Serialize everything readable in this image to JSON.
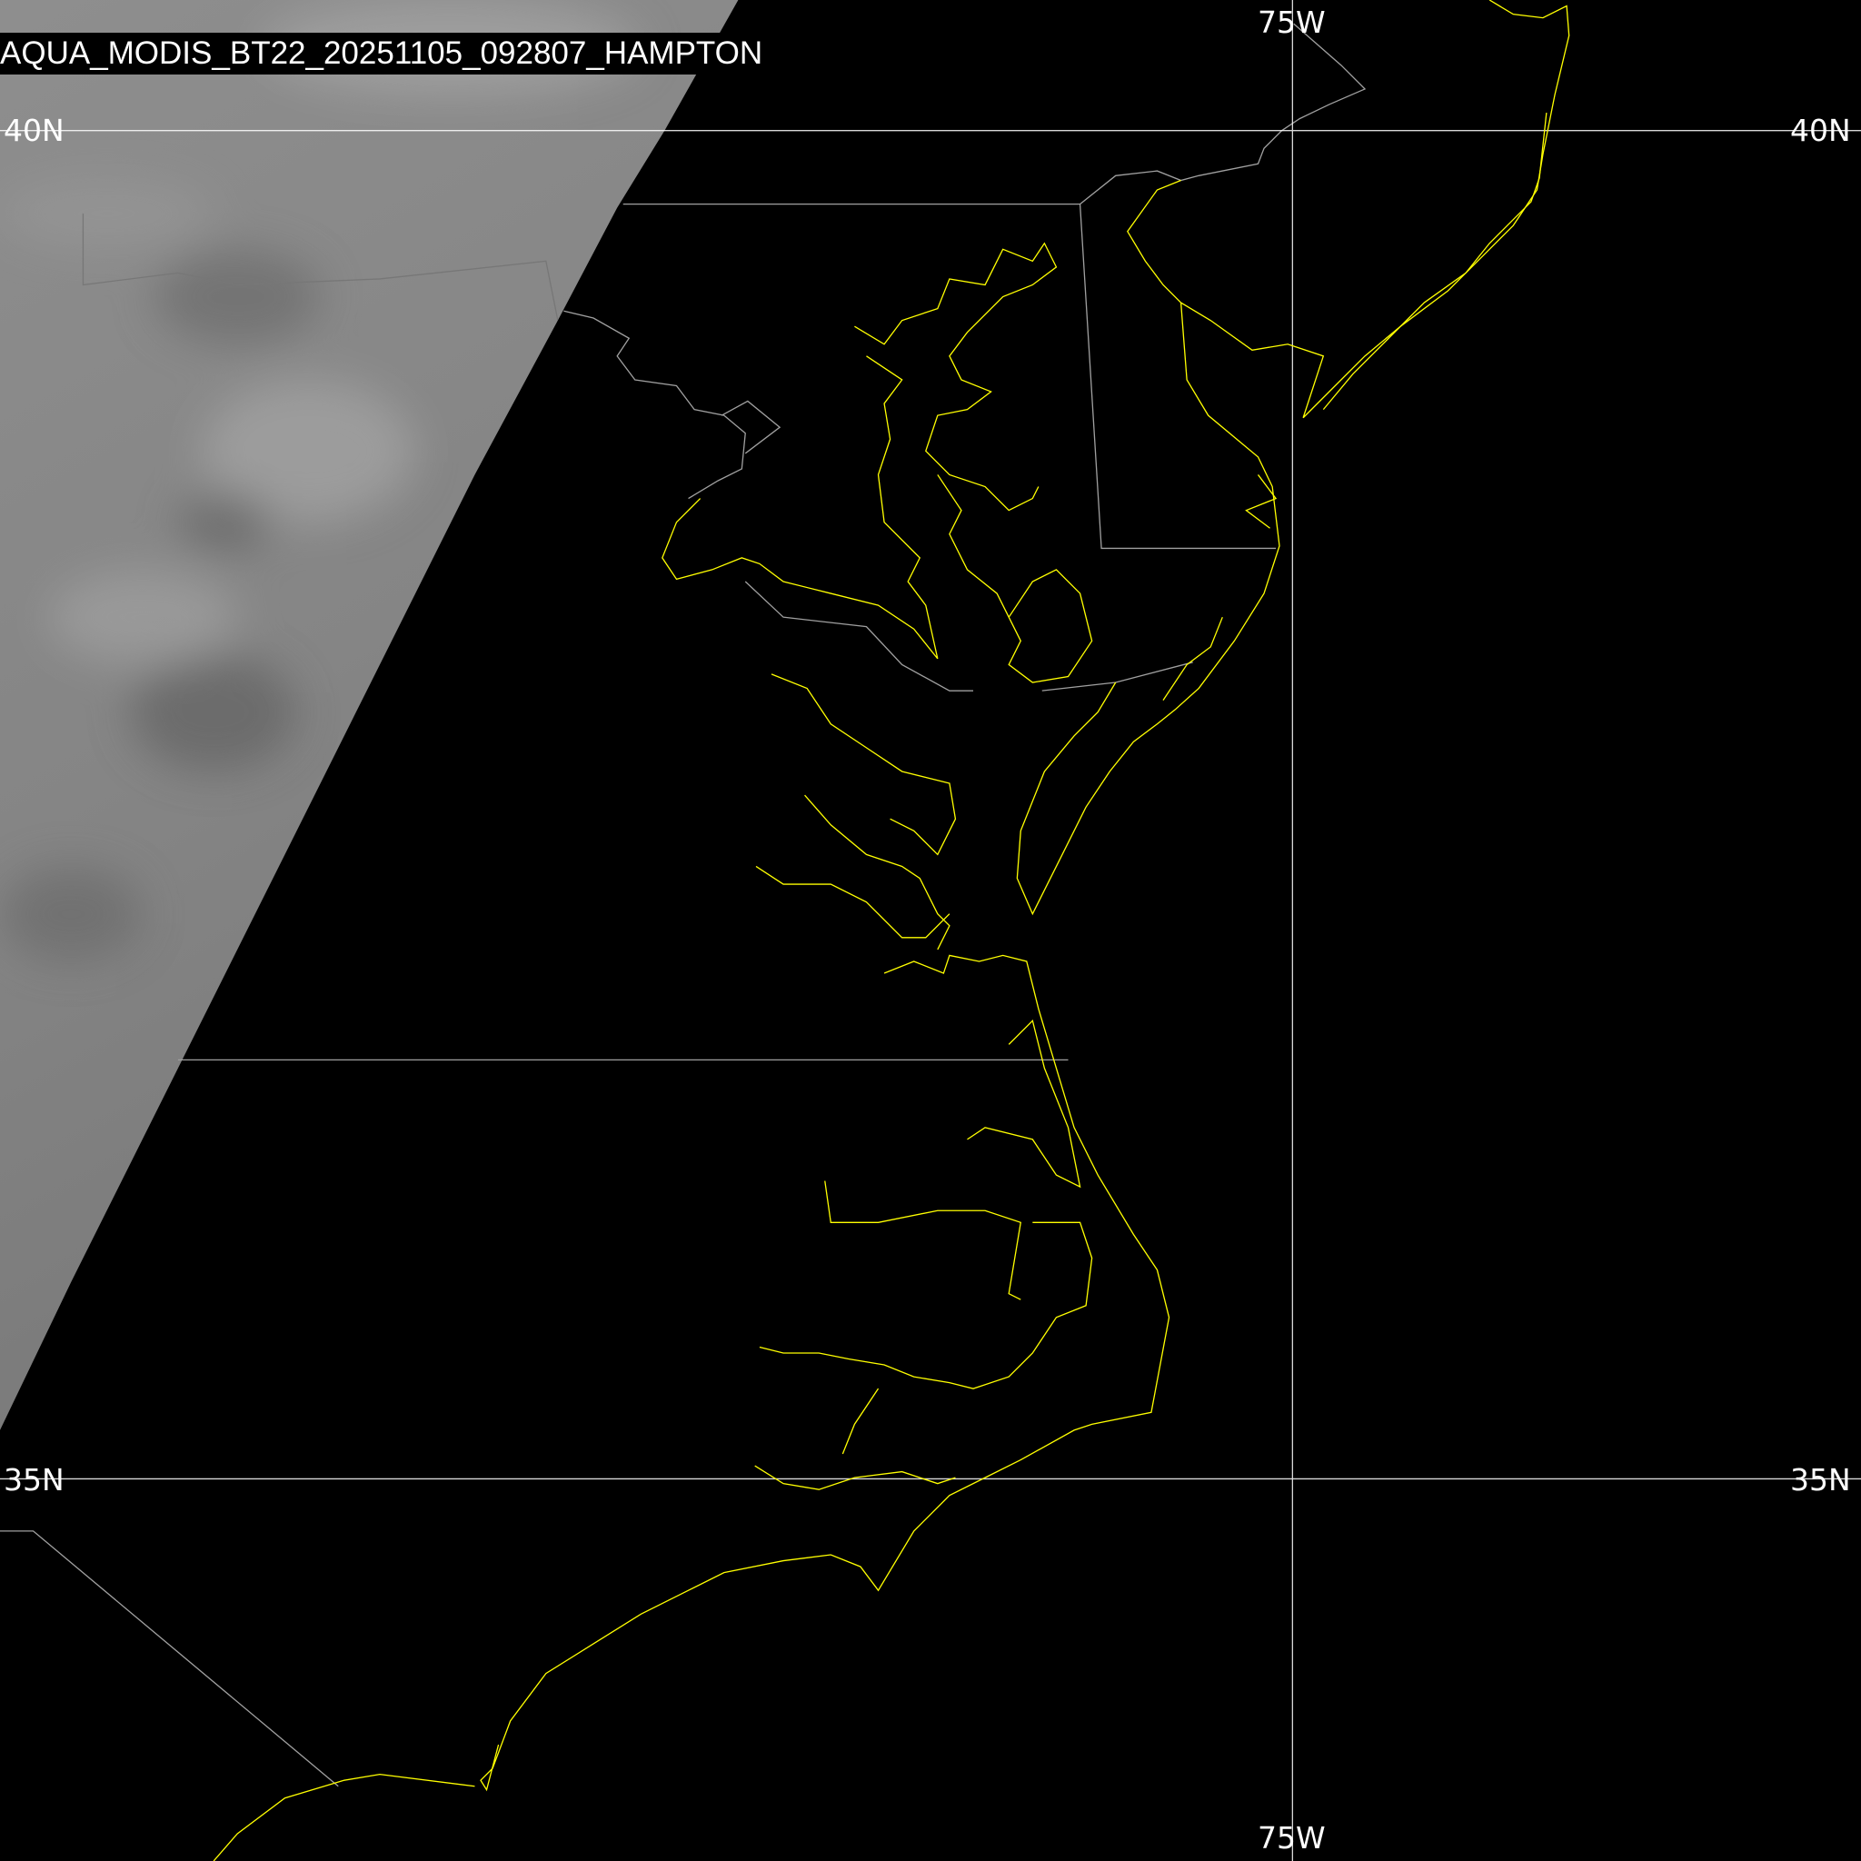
{
  "title": "AQUA_MODIS_BT22_20251105_092807_HAMPTON",
  "grid_labels": {
    "lat_top_left": "40N",
    "lat_top_right": "40N",
    "lat_bottom_left": "35N",
    "lat_bottom_right": "35N",
    "lon_top": "75W",
    "lon_bottom": "75W"
  },
  "colors": {
    "coastline": "#ffff00",
    "borders": "#a0a0a0",
    "gridlines": "#ffffff",
    "background": "#000000"
  }
}
